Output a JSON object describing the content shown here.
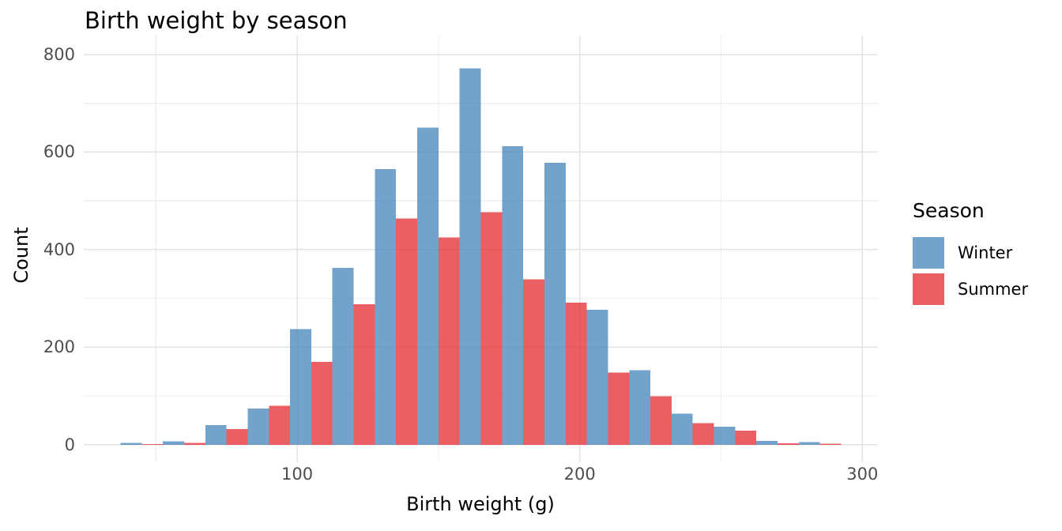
{
  "chart_data": {
    "type": "bar",
    "subtype": "dodged-histogram",
    "title": "Birth weight by season",
    "xlabel": "Birth weight (g)",
    "ylabel": "Count",
    "legend_title": "Season",
    "legend_position": "right",
    "grid": true,
    "binwidth": 15,
    "bin_centers": [
      45,
      60,
      75,
      90,
      105,
      120,
      135,
      150,
      165,
      180,
      195,
      210,
      225,
      240,
      255,
      270,
      285
    ],
    "series": [
      {
        "name": "Winter",
        "color": "#4C88BC",
        "fill_opacity": 0.78,
        "values": [
          4,
          7,
          40,
          74,
          237,
          363,
          565,
          650,
          772,
          612,
          578,
          277,
          153,
          64,
          37,
          8,
          5
        ]
      },
      {
        "name": "Summer",
        "color": "#E43237",
        "fill_opacity": 0.78,
        "values": [
          1,
          4,
          32,
          80,
          170,
          288,
          464,
          425,
          477,
          339,
          291,
          148,
          99,
          44,
          29,
          3,
          2
        ]
      }
    ],
    "x_ticks": [
      100,
      200,
      300
    ],
    "x_minor_ticks": [
      50,
      150,
      250
    ],
    "y_ticks": [
      0,
      200,
      400,
      600,
      800
    ],
    "y_minor_ticks": [
      100,
      300,
      500,
      700
    ],
    "xlim": [
      24.5,
      305.5
    ],
    "ylim": [
      -36,
      839
    ],
    "axis_text_color": "#4d4d4d",
    "gridline_major_color": "#E3E3E3",
    "gridline_minor_color": "#EEEEEE",
    "background": "#FFFFFF"
  }
}
